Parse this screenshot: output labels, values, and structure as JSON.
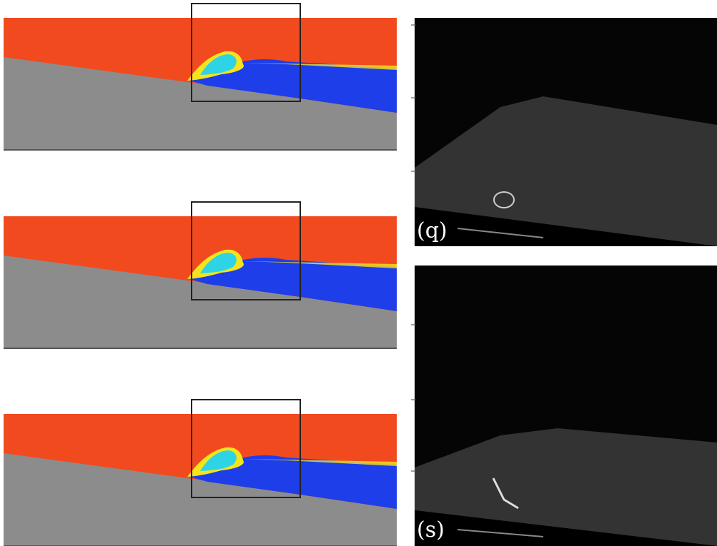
{
  "panels": [
    {
      "label": "(q)"
    },
    {
      "label": "(s)"
    }
  ]
}
